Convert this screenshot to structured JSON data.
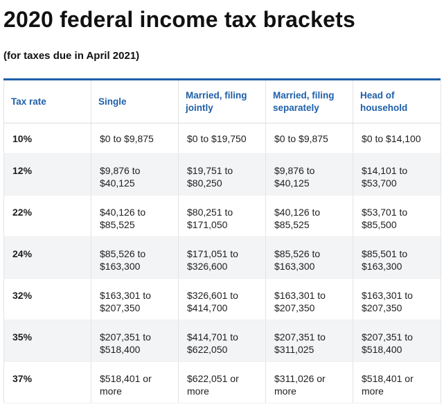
{
  "title": "2020 federal income tax brackets",
  "subtitle": "(for taxes due in April 2021)",
  "table": {
    "headers": [
      "Tax rate",
      "Single",
      "Married, filing jointly",
      "Married, filing separately",
      "Head of household"
    ],
    "rows": [
      [
        "10%",
        "$0 to $9,875",
        "$0 to $19,750",
        "$0 to $9,875",
        "$0 to $14,100"
      ],
      [
        "12%",
        "$9,876 to $40,125",
        "$19,751 to $80,250",
        "$9,876 to $40,125",
        "$14,101 to $53,700"
      ],
      [
        "22%",
        "$40,126 to $85,525",
        "$80,251 to $171,050",
        "$40,126 to $85,525",
        "$53,701 to $85,500"
      ],
      [
        "24%",
        "$85,526 to $163,300",
        "$171,051 to $326,600",
        "$85,526 to $163,300",
        "$85,501 to $163,300"
      ],
      [
        "32%",
        "$163,301 to $207,350",
        "$326,601 to $414,700",
        "$163,301 to $207,350",
        "$163,301 to $207,350"
      ],
      [
        "35%",
        "$207,351 to $518,400",
        "$414,701 to $622,050",
        "$207,351 to $311,025",
        "$207,351 to $518,400"
      ],
      [
        "37%",
        "$518,401 or more",
        "$622,051 or more",
        "$311,026 or more",
        "$518,401 or more"
      ]
    ]
  },
  "colors": {
    "header_text": "#1f5fa8",
    "header_rule": "#1f5fa8",
    "row_shade": "#f3f4f6"
  }
}
